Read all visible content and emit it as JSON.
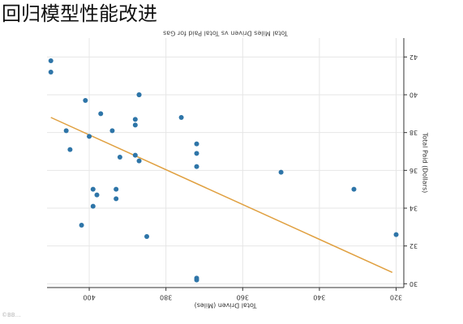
{
  "caption": "回归模型性能改进",
  "chart_data": {
    "type": "scatter",
    "title": "Total Miles Driven vs Total Paid for Gas",
    "xlabel": "Total Driven (Miles)",
    "ylabel": "Total Paid (Dollars)",
    "orientation": "rotated-180",
    "xlim": [
      318,
      411
    ],
    "ylim": [
      29.8,
      43.0
    ],
    "xticks": [
      400,
      380,
      360,
      340,
      320
    ],
    "yticks": [
      30,
      32,
      34,
      36,
      38,
      40,
      42
    ],
    "grid": true,
    "point_color": "#2e75a8",
    "line_color": "#e0a040",
    "points": [
      {
        "x": 410,
        "y": 41.8
      },
      {
        "x": 410,
        "y": 41.2
      },
      {
        "x": 406,
        "y": 38.1
      },
      {
        "x": 405,
        "y": 37.1
      },
      {
        "x": 402,
        "y": 33.1
      },
      {
        "x": 401,
        "y": 39.7
      },
      {
        "x": 400,
        "y": 37.8
      },
      {
        "x": 399,
        "y": 35.0
      },
      {
        "x": 399,
        "y": 34.1
      },
      {
        "x": 398,
        "y": 34.7
      },
      {
        "x": 397,
        "y": 39.0
      },
      {
        "x": 394,
        "y": 38.1
      },
      {
        "x": 393,
        "y": 35.0
      },
      {
        "x": 393,
        "y": 34.5
      },
      {
        "x": 392,
        "y": 36.7
      },
      {
        "x": 388,
        "y": 38.7
      },
      {
        "x": 388,
        "y": 38.4
      },
      {
        "x": 388,
        "y": 36.8
      },
      {
        "x": 387,
        "y": 40.0
      },
      {
        "x": 387,
        "y": 40.0
      },
      {
        "x": 387,
        "y": 36.5
      },
      {
        "x": 385,
        "y": 32.5
      },
      {
        "x": 376,
        "y": 38.8
      },
      {
        "x": 372,
        "y": 30.3
      },
      {
        "x": 372,
        "y": 30.2
      },
      {
        "x": 372,
        "y": 37.4
      },
      {
        "x": 372,
        "y": 36.9
      },
      {
        "x": 372,
        "y": 36.2
      },
      {
        "x": 350,
        "y": 35.9
      },
      {
        "x": 331,
        "y": 35.0
      },
      {
        "x": 320,
        "y": 32.6
      }
    ],
    "regression_line": [
      {
        "x": 410,
        "y": 38.8
      },
      {
        "x": 321,
        "y": 30.6
      }
    ]
  },
  "watermark": "©BB…"
}
